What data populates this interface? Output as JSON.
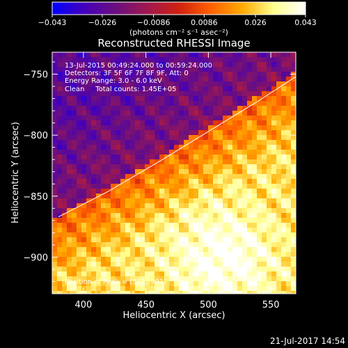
{
  "colors": {
    "background": "#000000",
    "foreground": "#ffffff",
    "limb": "#ffffff"
  },
  "colorbar": {
    "tick_labels": [
      "−0.043",
      "−0.026",
      "−0.0086",
      "0.0086",
      "0.026",
      "0.043"
    ],
    "tick_values": [
      -0.043,
      -0.026,
      -0.0086,
      0.0086,
      0.026,
      0.043
    ],
    "range": [
      -0.043,
      0.043
    ],
    "unit_label": "(photons cm⁻² s⁻¹ asec⁻²)",
    "stops": [
      "#0000ff",
      "#4400bb",
      "#6a0f80",
      "#a01850",
      "#d02010",
      "#ff6000",
      "#ffaa00",
      "#ffff90",
      "#ffffff"
    ]
  },
  "chart_data": {
    "type": "heatmap",
    "title": "Reconstructed RHESSI Image",
    "xlabel": "Heliocentric X (arcsec)",
    "ylabel": "Heliocentric Y (arcsec)",
    "xlim": [
      375,
      570
    ],
    "ylim": [
      -930,
      -732
    ],
    "x_ticks": [
      400,
      450,
      500,
      550
    ],
    "y_ticks": [
      -750,
      -800,
      -850,
      -900
    ],
    "annotations": [
      "13-Jul-2015 00:49:24.000 to 00:59:24.000",
      "Detectors: 3F 5F 6F 7F 8F 9F, Att: 0",
      "Energy Range: 3.0 - 6.0 keV",
      "Clean     Total counts: 1.45E+05"
    ],
    "peak_label": "Position of Peak = [511,-901]",
    "peak": {
      "x": 511,
      "y": -901
    },
    "limb_curve": [
      {
        "x": 380,
        "y": -867
      },
      {
        "x": 420,
        "y": -846
      },
      {
        "x": 460,
        "y": -822
      },
      {
        "x": 500,
        "y": -797
      },
      {
        "x": 540,
        "y": -772
      },
      {
        "x": 570,
        "y": -752
      }
    ],
    "grid": false
  },
  "timestamp": "21-Jul-2017 14:54"
}
